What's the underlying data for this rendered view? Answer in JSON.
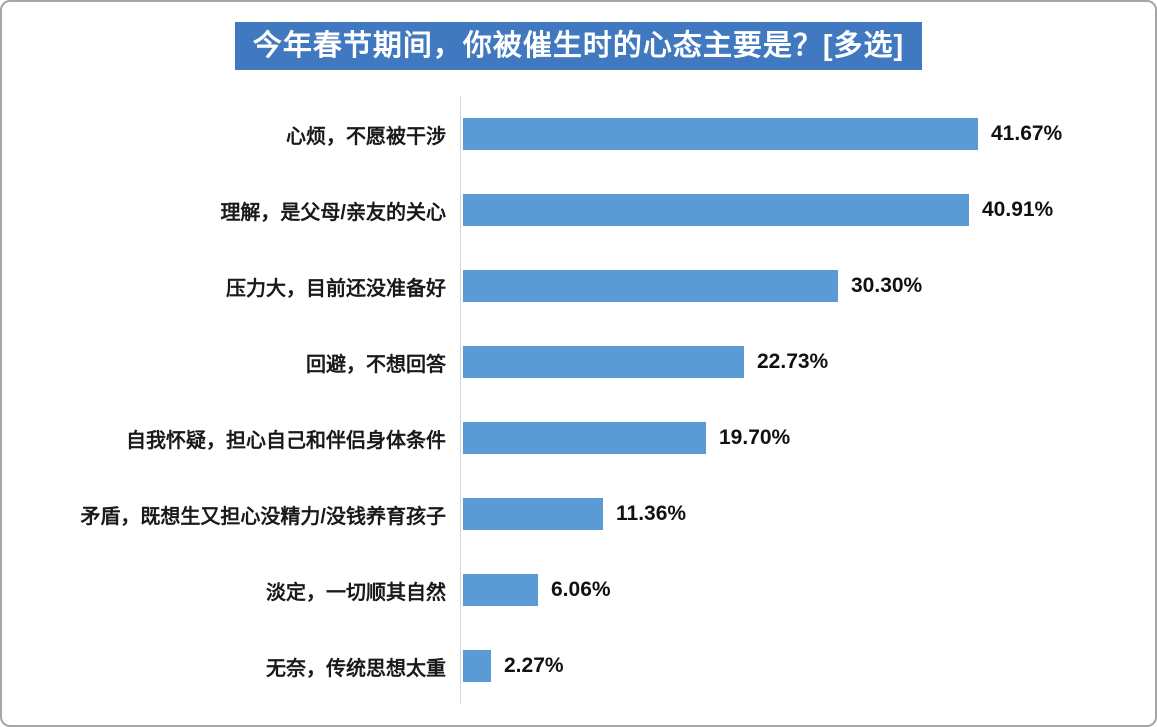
{
  "chart_data": {
    "type": "bar",
    "orientation": "horizontal",
    "title": "今年春节期间，你被催生时的心态主要是？[多选]",
    "categories": [
      "心烦，不愿被干涉",
      "理解，是父母/亲友的关心",
      "压力大，目前还没准备好",
      "回避，不想回答",
      "自我怀疑，担心自己和伴侣身体条件",
      "矛盾，既想生又担心没精力/没钱养育孩子",
      "淡定，一切顺其自然",
      "无奈，传统思想太重"
    ],
    "values": [
      41.67,
      40.91,
      30.3,
      22.73,
      19.7,
      11.36,
      6.06,
      2.27
    ],
    "value_labels": [
      "41.67%",
      "40.91%",
      "30.30%",
      "22.73%",
      "19.70%",
      "11.36%",
      "6.06%",
      "2.27%"
    ],
    "xlim": [
      0,
      45
    ],
    "grid": false,
    "legend": "none",
    "value_label_position": "right-of-bar"
  },
  "colors": {
    "title_bg": "#4179C0",
    "title_text": "#FFFFFF",
    "bar": "#5B9BD5",
    "axis_line": "#D6D6D6",
    "label_text": "#1A1A1A",
    "value_text": "#111111",
    "card_border": "#A6A6A6",
    "background": "#FFFFFF"
  }
}
